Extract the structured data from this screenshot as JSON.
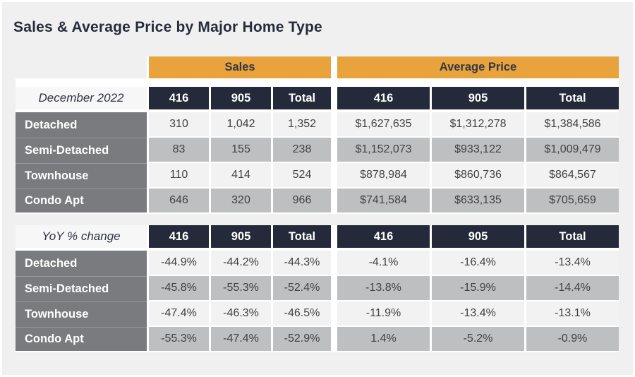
{
  "title": "Sales & Average Price by Major Home Type",
  "colors": {
    "accent_gold": "#E8A33C",
    "header_navy": "#242A3A",
    "row_label_gray": "#7A7B7E",
    "row_light": "#F2F2F3",
    "row_shaded": "#BEBFC0",
    "page_background": "#F0F0F1",
    "title_text": "#262C3C",
    "data_text": "#424244"
  },
  "chart_data": {
    "type": "table",
    "title": "Sales & Average Price by Major Home Type",
    "group_headers": [
      "Sales",
      "Average Price"
    ],
    "column_headers": [
      "416",
      "905",
      "Total"
    ],
    "sections": [
      {
        "label": "December 2022",
        "rows": [
          {
            "name": "Detached",
            "sales": [
              "310",
              "1,042",
              "1,352"
            ],
            "avg_price": [
              "$1,627,635",
              "$1,312,278",
              "$1,384,586"
            ]
          },
          {
            "name": "Semi-Detached",
            "sales": [
              "83",
              "155",
              "238"
            ],
            "avg_price": [
              "$1,152,073",
              "$933,122",
              "$1,009,479"
            ]
          },
          {
            "name": "Townhouse",
            "sales": [
              "110",
              "414",
              "524"
            ],
            "avg_price": [
              "$878,984",
              "$860,736",
              "$864,567"
            ]
          },
          {
            "name": "Condo Apt",
            "sales": [
              "646",
              "320",
              "966"
            ],
            "avg_price": [
              "$741,584",
              "$633,135",
              "$705,659"
            ]
          }
        ]
      },
      {
        "label": "YoY % change",
        "rows": [
          {
            "name": "Detached",
            "sales": [
              "-44.9%",
              "-44.2%",
              "-44.3%"
            ],
            "avg_price": [
              "-4.1%",
              "-16.4%",
              "-13.4%"
            ]
          },
          {
            "name": "Semi-Detached",
            "sales": [
              "-45.8%",
              "-55.3%",
              "-52.4%"
            ],
            "avg_price": [
              "-13.8%",
              "-15.9%",
              "-14.4%"
            ]
          },
          {
            "name": "Townhouse",
            "sales": [
              "-47.4%",
              "-46.3%",
              "-46.5%"
            ],
            "avg_price": [
              "-11.9%",
              "-13.4%",
              "-13.1%"
            ]
          },
          {
            "name": "Condo Apt",
            "sales": [
              "-55.3%",
              "-47.4%",
              "-52.9%"
            ],
            "avg_price": [
              "1.4%",
              "-5.2%",
              "-0.9%"
            ]
          }
        ]
      }
    ]
  }
}
